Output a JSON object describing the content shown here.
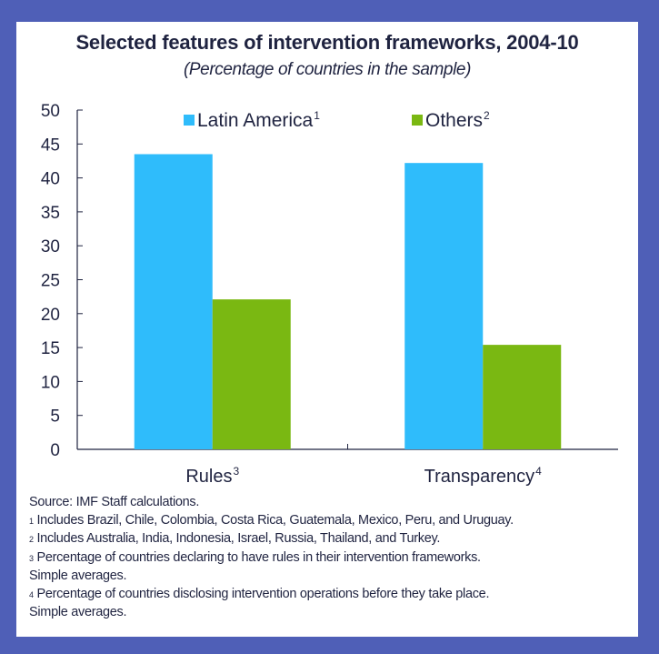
{
  "colors": {
    "frame": "#4f5fb7",
    "latin_america": "#2fbcfb",
    "others": "#7ab812",
    "text": "#1f2340"
  },
  "chart_data": {
    "type": "bar",
    "title": "Selected features of intervention frameworks, 2004-10",
    "subtitle": "(Percentage of countries in the sample)",
    "categories": [
      {
        "label": "Rules",
        "sup": "3"
      },
      {
        "label": "Transparency",
        "sup": "4"
      }
    ],
    "series": [
      {
        "name": "Latin America",
        "sup": "1",
        "color": "#2fbcfb",
        "values": [
          43.5,
          42.2
        ]
      },
      {
        "name": "Others",
        "sup": "2",
        "color": "#7ab812",
        "values": [
          22.1,
          15.4
        ]
      }
    ],
    "xlabel": "",
    "ylabel": "",
    "ylim": [
      0,
      50
    ],
    "yticks": [
      "0",
      "5",
      "10",
      "15",
      "20",
      "25",
      "30",
      "35",
      "40",
      "45",
      "50"
    ],
    "grid": false,
    "legend": "top"
  },
  "notes": [
    {
      "sup": "",
      "text": "Source: IMF Staff calculations."
    },
    {
      "sup": "1",
      "text": " Includes Brazil, Chile, Colombia, Costa Rica, Guatemala, Mexico, Peru, and Uruguay."
    },
    {
      "sup": "2",
      "text": " Includes Australia, India, Indonesia, Israel, Russia, Thailand, and Turkey."
    },
    {
      "sup": "3",
      "text": " Percentage of countries declaring to have rules in their intervention frameworks."
    },
    {
      "sup": "",
      "text": "Simple averages."
    },
    {
      "sup": "4",
      "text": " Percentage of countries disclosing intervention operations before they take place."
    },
    {
      "sup": "",
      "text": "Simple averages."
    }
  ]
}
